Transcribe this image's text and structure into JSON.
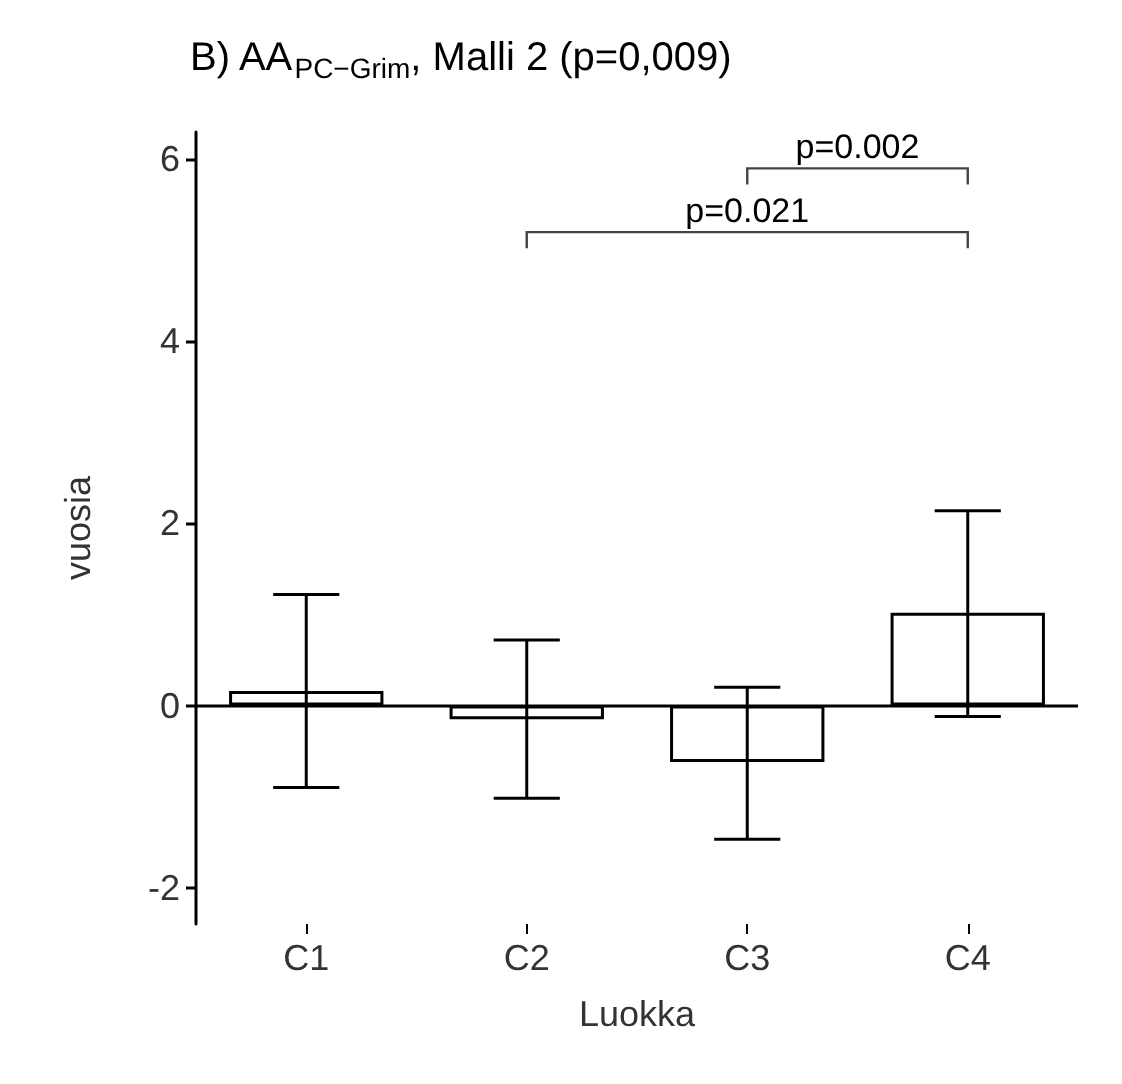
{
  "chart_data": {
    "type": "bar",
    "title": "B) AA$_{PC−Grim}$, Malli 2 (p=0,009)",
    "xlabel": "Luokka",
    "ylabel": "vuosia",
    "categories": [
      "C1",
      "C2",
      "C3",
      "C4"
    ],
    "values": [
      0.16,
      -0.15,
      -0.62,
      1.02
    ],
    "errors": [
      [
        -0.9,
        1.22
      ],
      [
        -1.02,
        0.72
      ],
      [
        -1.47,
        0.2
      ],
      [
        -0.12,
        2.14
      ]
    ],
    "color": "#ffffff",
    "ylim": [
      -2.4,
      6.3
    ],
    "yticks": [
      -2,
      0,
      2,
      4,
      6
    ],
    "ref_lines": [
      {
        "axis": "y",
        "value": 0,
        "color": "#000000"
      }
    ],
    "annotations": [
      "p=0.002",
      "p=0.021"
    ],
    "grid": false
  }
}
